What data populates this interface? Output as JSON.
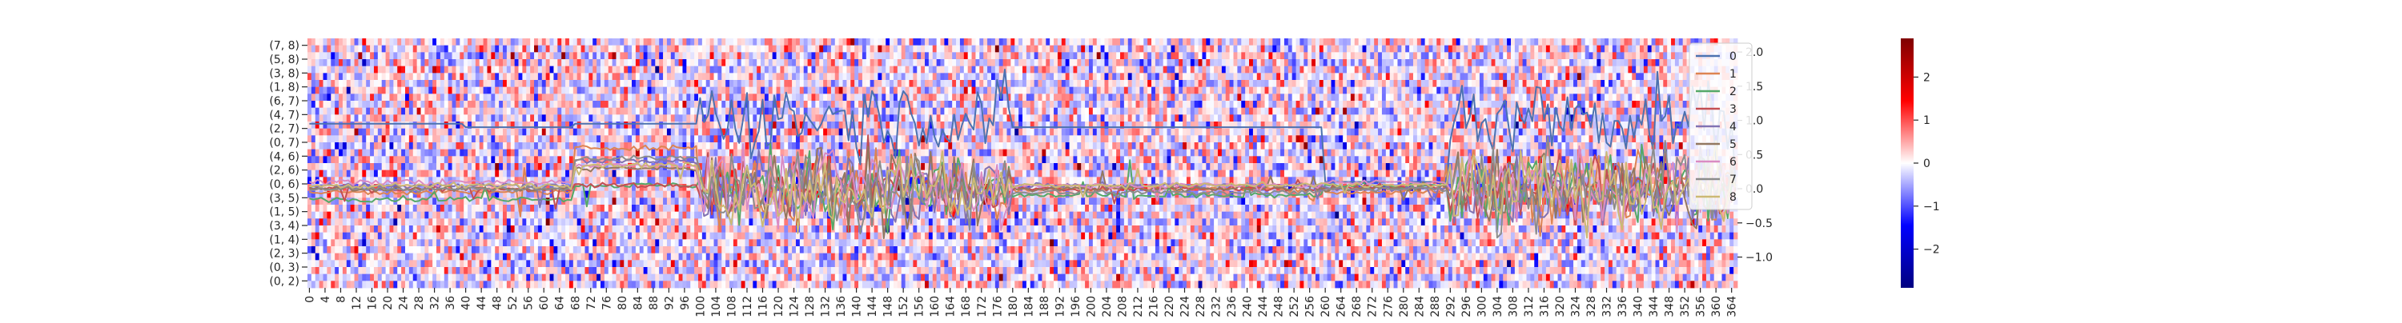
{
  "chart_data": {
    "type": "heatmap",
    "title": "",
    "xlabel": "",
    "ylabel": "",
    "heatmap": {
      "n_cols": 366,
      "x_tick_labels": [
        "0",
        "4",
        "8",
        "12",
        "16",
        "20",
        "24",
        "28",
        "32",
        "36",
        "40",
        "44",
        "48",
        "52",
        "56",
        "60",
        "64",
        "68",
        "72",
        "76",
        "80",
        "84",
        "88",
        "92",
        "96",
        "100",
        "104",
        "108",
        "112",
        "116",
        "120",
        "124",
        "128",
        "132",
        "136",
        "140",
        "144",
        "148",
        "152",
        "156",
        "160",
        "164",
        "168",
        "172",
        "176",
        "180",
        "184",
        "188",
        "192",
        "196",
        "200",
        "204",
        "208",
        "212",
        "216",
        "220",
        "224",
        "228",
        "232",
        "236",
        "240",
        "244",
        "248",
        "252",
        "256",
        "260",
        "264",
        "268",
        "272",
        "276",
        "280",
        "284",
        "288",
        "292",
        "296",
        "300",
        "304",
        "308",
        "312",
        "316",
        "320",
        "324",
        "328",
        "332",
        "336",
        "340",
        "344",
        "348",
        "352",
        "356",
        "360",
        "364"
      ],
      "row_labels": [
        "(7, 8)",
        "(5, 8)",
        "(3, 8)",
        "(1, 8)",
        "(6, 7)",
        "(4, 7)",
        "(2, 7)",
        "(0, 7)",
        "(4, 6)",
        "(2, 6)",
        "(0, 6)",
        "(3, 5)",
        "(1, 5)",
        "(3, 4)",
        "(1, 4)",
        "(2, 3)",
        "(0, 3)",
        "(0, 2)"
      ],
      "n_rows": 36,
      "colormap": [
        "#00007f",
        "#0000ff",
        "#ffffff",
        "#ff0000",
        "#7f0000"
      ],
      "vmin": -2.9,
      "vmax": 2.9
    },
    "colorbar": {
      "ticks": [
        2,
        1,
        0,
        -1,
        -2
      ],
      "tick_labels": [
        "2",
        "1",
        "0",
        "−1",
        "−2"
      ]
    },
    "lines": {
      "y_ticks": [
        2.0,
        1.5,
        1.0,
        0.5,
        0.0,
        -0.5,
        -1.0
      ],
      "y_tick_labels": [
        "2.0",
        "1.5",
        "1.0",
        "0.5",
        "0.0",
        "−0.5",
        "−1.0"
      ],
      "ylim": [
        -1.45,
        2.2
      ],
      "legend_position": "upper-right",
      "series": [
        {
          "name": "0",
          "color": "#4c72b0"
        },
        {
          "name": "1",
          "color": "#dd8452"
        },
        {
          "name": "2",
          "color": "#55a868"
        },
        {
          "name": "3",
          "color": "#c44e52"
        },
        {
          "name": "4",
          "color": "#8172b3"
        },
        {
          "name": "5",
          "color": "#937860"
        },
        {
          "name": "6",
          "color": "#da8bc3"
        },
        {
          "name": "7",
          "color": "#8c8c8c"
        },
        {
          "name": "8",
          "color": "#ccb974"
        }
      ]
    }
  }
}
